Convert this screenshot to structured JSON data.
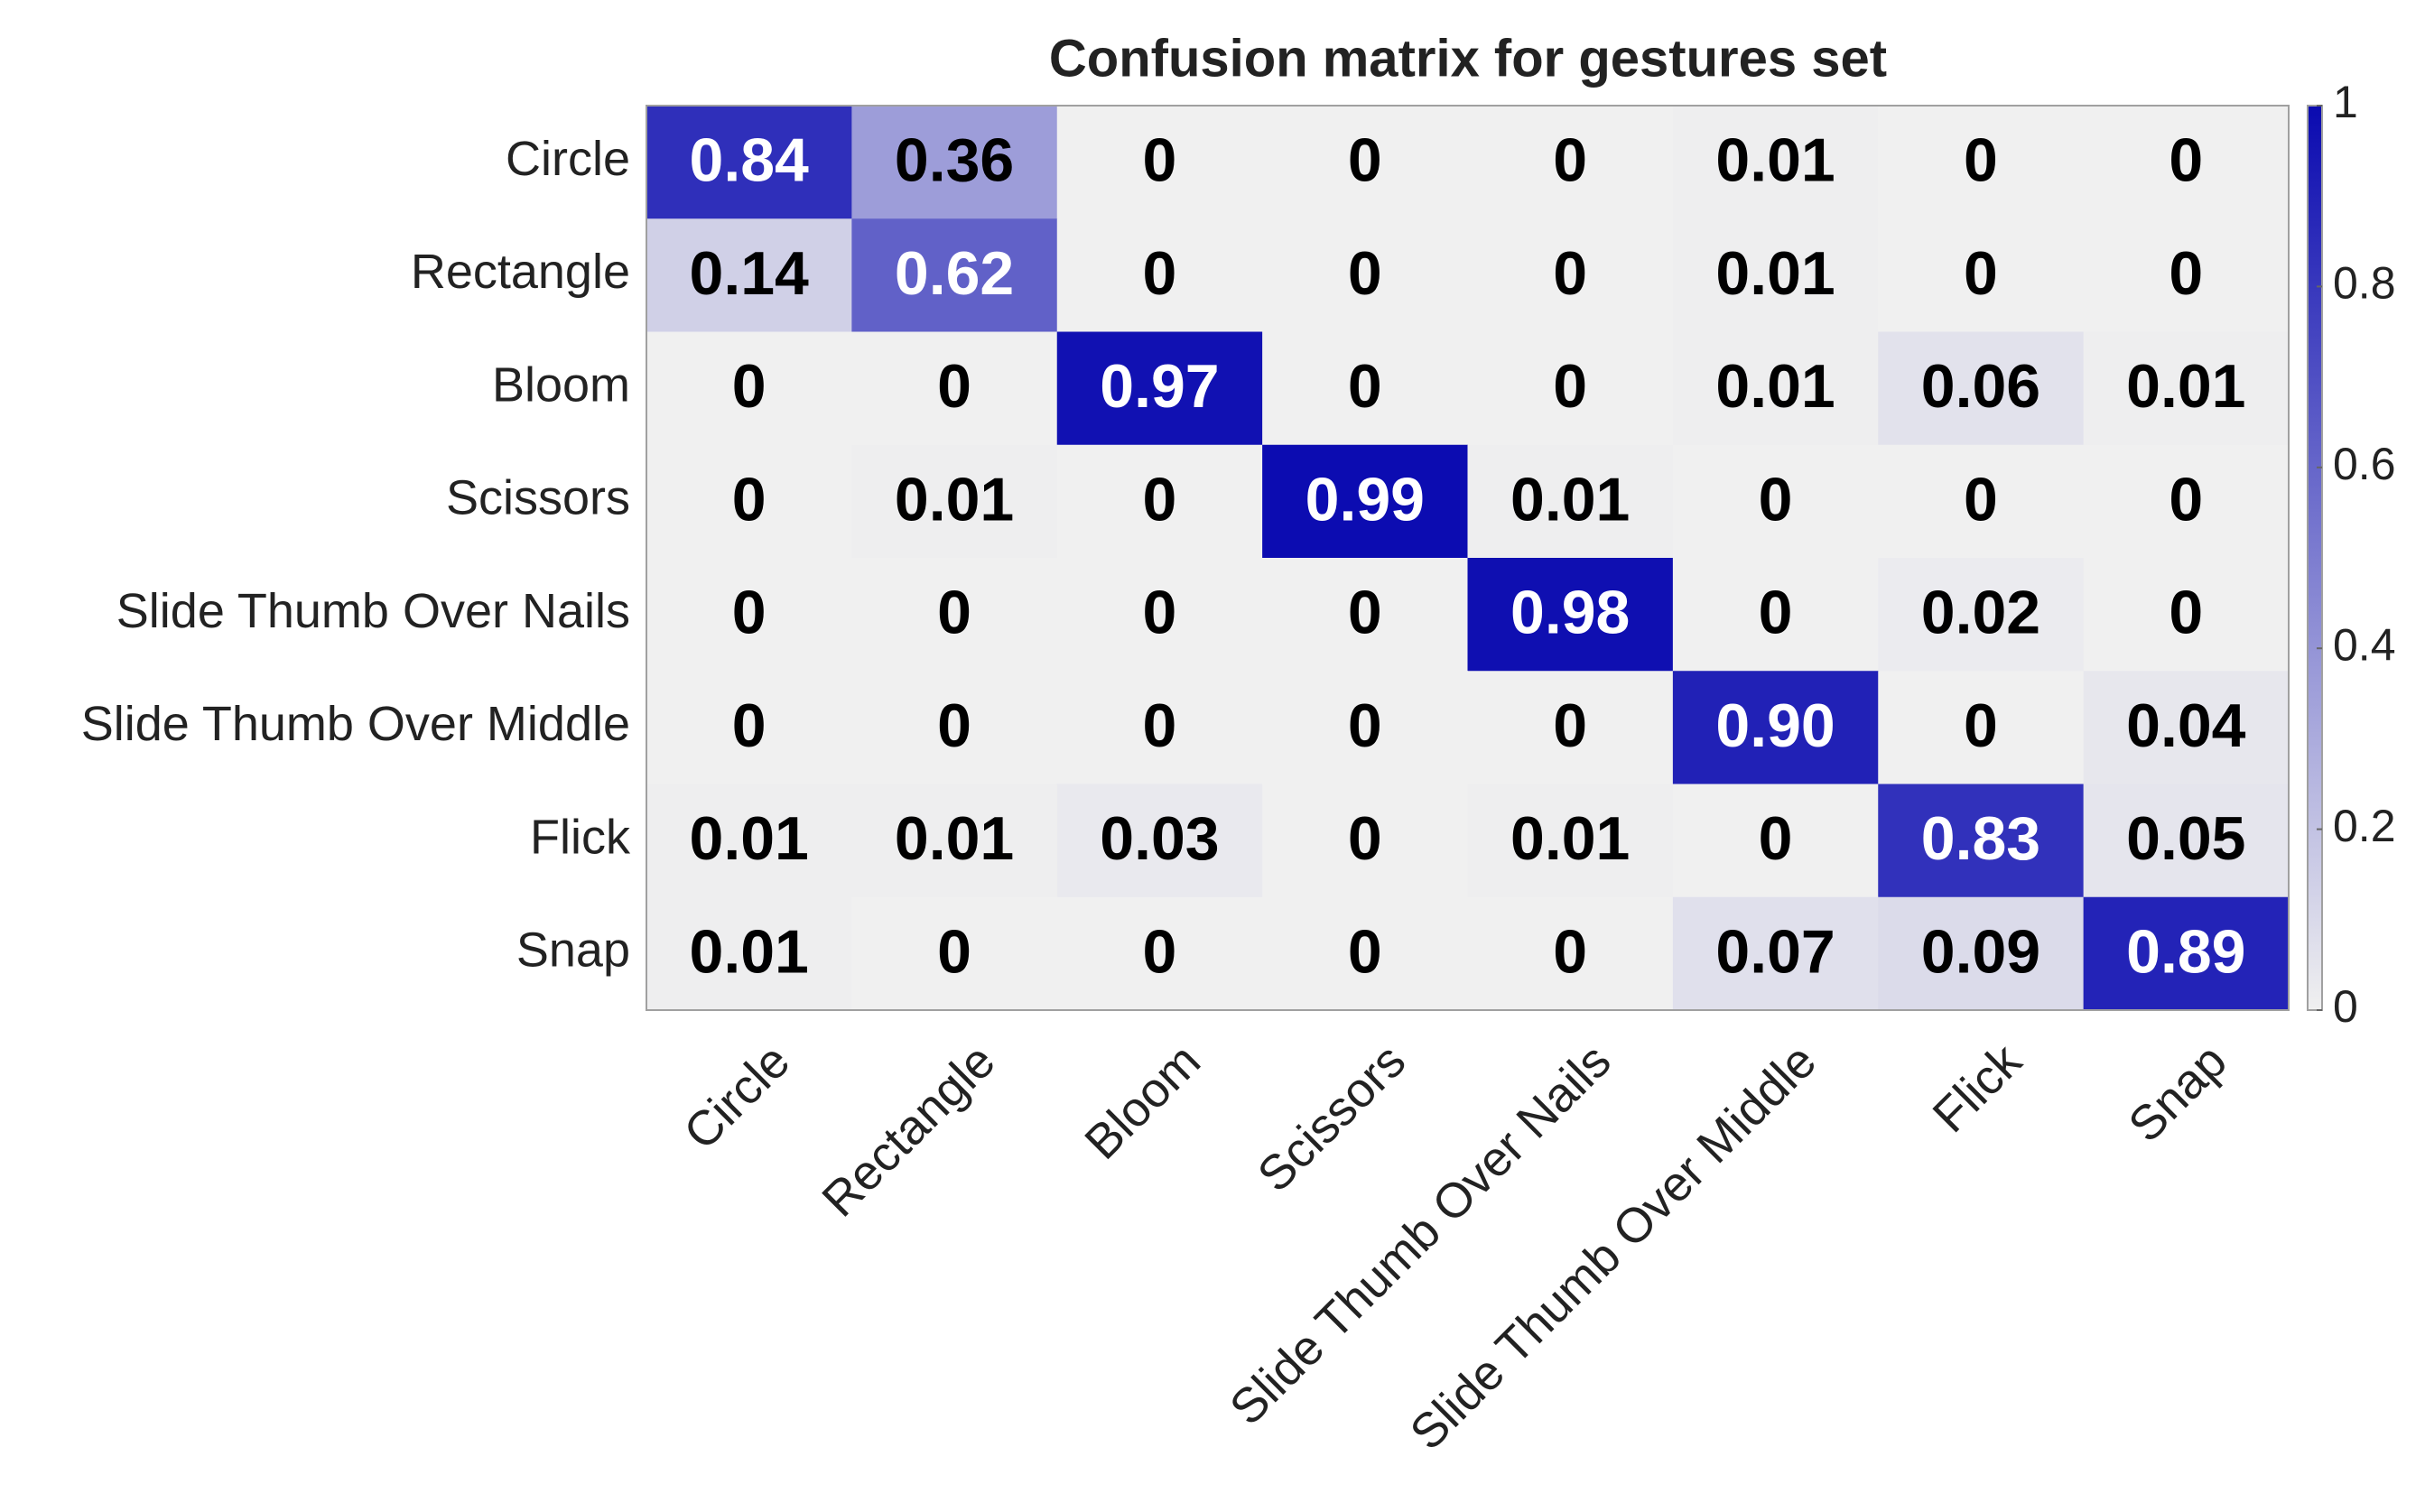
{
  "chart_data": {
    "type": "heatmap",
    "title": "Confusion matrix for gestures set",
    "x_categories": [
      "Circle",
      "Rectangle",
      "Bloom",
      "Scissors",
      "Slide Thumb Over Nails",
      "Slide Thumb Over Middle",
      "Flick",
      "Snap"
    ],
    "y_categories": [
      "Circle",
      "Rectangle",
      "Bloom",
      "Scissors",
      "Slide Thumb Over Nails",
      "Slide Thumb Over Middle",
      "Flick",
      "Snap"
    ],
    "values": [
      [
        0.84,
        0.36,
        0,
        0,
        0,
        0.01,
        0,
        0
      ],
      [
        0.14,
        0.62,
        0,
        0,
        0,
        0.01,
        0,
        0
      ],
      [
        0,
        0,
        0.97,
        0,
        0,
        0.01,
        0.06,
        0.01
      ],
      [
        0,
        0.01,
        0,
        0.99,
        0.01,
        0,
        0,
        0
      ],
      [
        0,
        0,
        0,
        0,
        0.98,
        0,
        0.02,
        0
      ],
      [
        0,
        0,
        0,
        0,
        0,
        0.9,
        0,
        0.04
      ],
      [
        0.01,
        0.01,
        0.03,
        0,
        0.01,
        0,
        0.83,
        0.05
      ],
      [
        0.01,
        0,
        0,
        0,
        0,
        0.07,
        0.09,
        0.89
      ]
    ],
    "value_labels": [
      [
        "0.84",
        "0.36",
        "0",
        "0",
        "0",
        "0.01",
        "0",
        "0"
      ],
      [
        "0.14",
        "0.62",
        "0",
        "0",
        "0",
        "0.01",
        "0",
        "0"
      ],
      [
        "0",
        "0",
        "0.97",
        "0",
        "0",
        "0.01",
        "0.06",
        "0.01"
      ],
      [
        "0",
        "0.01",
        "0",
        "0.99",
        "0.01",
        "0",
        "0",
        "0"
      ],
      [
        "0",
        "0",
        "0",
        "0",
        "0.98",
        "0",
        "0.02",
        "0"
      ],
      [
        "0",
        "0",
        "0",
        "0",
        "0",
        "0.90",
        "0",
        "0.04"
      ],
      [
        "0.01",
        "0.01",
        "0.03",
        "0",
        "0.01",
        "0",
        "0.83",
        "0.05"
      ],
      [
        "0.01",
        "0",
        "0",
        "0",
        "0",
        "0.07",
        "0.09",
        "0.89"
      ]
    ],
    "colormap": [
      "#f0f0f0",
      "#0a0ab0"
    ],
    "clim": [
      0,
      1
    ],
    "colorbar_ticks": [
      0,
      0.2,
      0.4,
      0.6,
      0.8,
      1
    ]
  }
}
